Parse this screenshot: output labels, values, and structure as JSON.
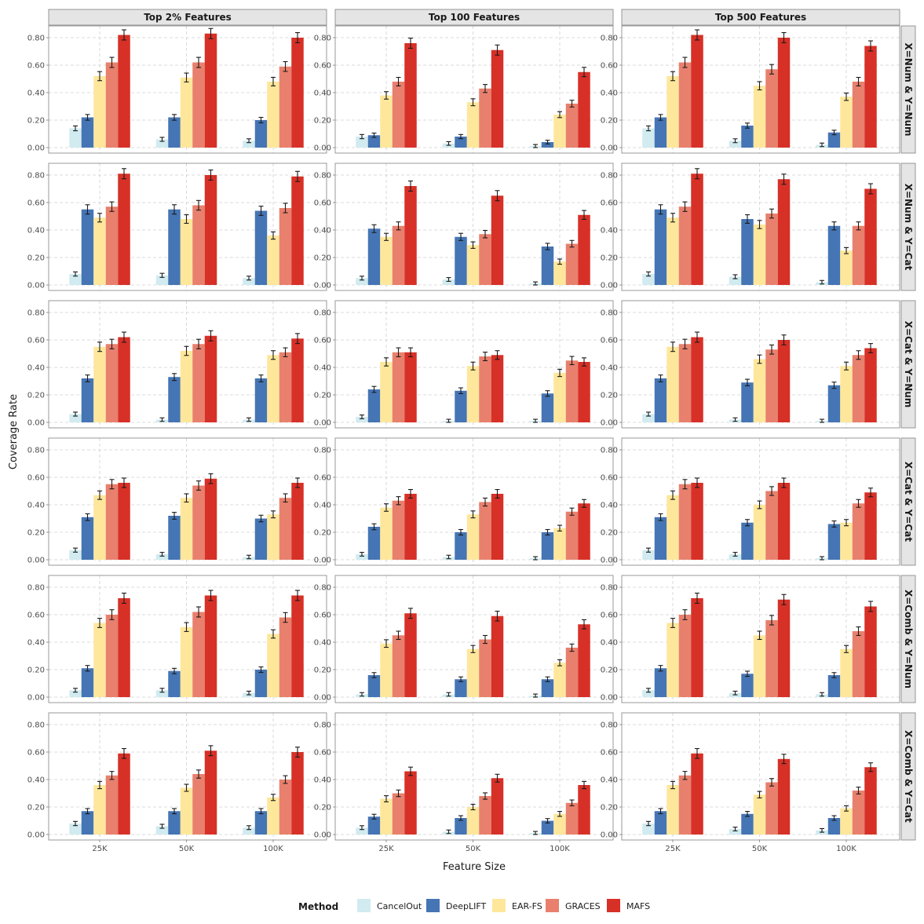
{
  "chart_data": {
    "type": "bar",
    "ylabel": "Coverage Rate",
    "xlabel": "Feature Size",
    "legend_title": "Method",
    "legend_position": "bottom",
    "grid": true,
    "ylim": [
      0,
      0.8
    ],
    "y_ticks": [
      "0.00",
      "0.20",
      "0.40",
      "0.60",
      "0.80"
    ],
    "categories": [
      "25K",
      "50K",
      "100K"
    ],
    "columns": [
      "Top 2% Features",
      "Top 100 Features",
      "Top 500 Features"
    ],
    "rows": [
      "X=Num & Y=Num",
      "X=Num & Y=Cat",
      "X=Cat & Y=Num",
      "X=Cat & Y=Cat",
      "X=Comb & Y=Num",
      "X=Comb & Y=Cat"
    ],
    "methods": [
      {
        "name": "CancelOut",
        "color": "#d1ebf0"
      },
      {
        "name": "DeepLIFT",
        "color": "#4575b4"
      },
      {
        "name": "EAR-FS",
        "color": "#fee79b"
      },
      {
        "name": "GRACES",
        "color": "#e8806d"
      },
      {
        "name": "MAFS",
        "color": "#d73027"
      }
    ],
    "panels": [
      {
        "row": 0,
        "col": 0,
        "values": [
          [
            0.14,
            0.06,
            0.05
          ],
          [
            0.22,
            0.22,
            0.2
          ],
          [
            0.52,
            0.51,
            0.48
          ],
          [
            0.62,
            0.62,
            0.59
          ],
          [
            0.82,
            0.83,
            0.8
          ]
        ]
      },
      {
        "row": 0,
        "col": 1,
        "values": [
          [
            0.08,
            0.03,
            0.01
          ],
          [
            0.09,
            0.08,
            0.04
          ],
          [
            0.38,
            0.33,
            0.24
          ],
          [
            0.48,
            0.43,
            0.32
          ],
          [
            0.76,
            0.71,
            0.55
          ]
        ]
      },
      {
        "row": 0,
        "col": 2,
        "values": [
          [
            0.14,
            0.05,
            0.02
          ],
          [
            0.22,
            0.16,
            0.11
          ],
          [
            0.52,
            0.45,
            0.37
          ],
          [
            0.62,
            0.57,
            0.48
          ],
          [
            0.82,
            0.8,
            0.74
          ]
        ]
      },
      {
        "row": 1,
        "col": 0,
        "values": [
          [
            0.08,
            0.07,
            0.05
          ],
          [
            0.55,
            0.55,
            0.54
          ],
          [
            0.49,
            0.48,
            0.36
          ],
          [
            0.57,
            0.58,
            0.56
          ],
          [
            0.81,
            0.8,
            0.79
          ]
        ]
      },
      {
        "row": 1,
        "col": 1,
        "values": [
          [
            0.05,
            0.04,
            0.01
          ],
          [
            0.41,
            0.35,
            0.28
          ],
          [
            0.35,
            0.29,
            0.17
          ],
          [
            0.43,
            0.37,
            0.3
          ],
          [
            0.72,
            0.65,
            0.51
          ]
        ]
      },
      {
        "row": 1,
        "col": 2,
        "values": [
          [
            0.08,
            0.06,
            0.02
          ],
          [
            0.55,
            0.48,
            0.43
          ],
          [
            0.49,
            0.44,
            0.25
          ],
          [
            0.57,
            0.52,
            0.43
          ],
          [
            0.81,
            0.77,
            0.7
          ]
        ]
      },
      {
        "row": 2,
        "col": 0,
        "values": [
          [
            0.06,
            0.02,
            0.02
          ],
          [
            0.32,
            0.33,
            0.32
          ],
          [
            0.55,
            0.52,
            0.49
          ],
          [
            0.57,
            0.57,
            0.51
          ],
          [
            0.62,
            0.63,
            0.61
          ]
        ]
      },
      {
        "row": 2,
        "col": 1,
        "values": [
          [
            0.04,
            0.01,
            0.01
          ],
          [
            0.24,
            0.23,
            0.21
          ],
          [
            0.44,
            0.41,
            0.36
          ],
          [
            0.51,
            0.48,
            0.45
          ],
          [
            0.51,
            0.49,
            0.44
          ]
        ]
      },
      {
        "row": 2,
        "col": 2,
        "values": [
          [
            0.06,
            0.02,
            0.01
          ],
          [
            0.32,
            0.29,
            0.27
          ],
          [
            0.55,
            0.46,
            0.41
          ],
          [
            0.57,
            0.53,
            0.49
          ],
          [
            0.62,
            0.6,
            0.54
          ]
        ]
      },
      {
        "row": 3,
        "col": 0,
        "values": [
          [
            0.07,
            0.04,
            0.02
          ],
          [
            0.31,
            0.32,
            0.3
          ],
          [
            0.47,
            0.45,
            0.33
          ],
          [
            0.55,
            0.54,
            0.45
          ],
          [
            0.56,
            0.59,
            0.56
          ]
        ]
      },
      {
        "row": 3,
        "col": 1,
        "values": [
          [
            0.04,
            0.02,
            0.01
          ],
          [
            0.24,
            0.2,
            0.2
          ],
          [
            0.38,
            0.33,
            0.23
          ],
          [
            0.43,
            0.42,
            0.35
          ],
          [
            0.48,
            0.48,
            0.41
          ]
        ]
      },
      {
        "row": 3,
        "col": 2,
        "values": [
          [
            0.07,
            0.04,
            0.01
          ],
          [
            0.31,
            0.27,
            0.26
          ],
          [
            0.47,
            0.4,
            0.27
          ],
          [
            0.55,
            0.5,
            0.41
          ],
          [
            0.56,
            0.56,
            0.49
          ]
        ]
      },
      {
        "row": 4,
        "col": 0,
        "values": [
          [
            0.05,
            0.05,
            0.03
          ],
          [
            0.21,
            0.19,
            0.2
          ],
          [
            0.54,
            0.51,
            0.46
          ],
          [
            0.6,
            0.62,
            0.58
          ],
          [
            0.72,
            0.74,
            0.74
          ]
        ]
      },
      {
        "row": 4,
        "col": 1,
        "values": [
          [
            0.02,
            0.02,
            0.01
          ],
          [
            0.16,
            0.13,
            0.13
          ],
          [
            0.39,
            0.35,
            0.25
          ],
          [
            0.45,
            0.42,
            0.36
          ],
          [
            0.61,
            0.59,
            0.53
          ]
        ]
      },
      {
        "row": 4,
        "col": 2,
        "values": [
          [
            0.05,
            0.03,
            0.02
          ],
          [
            0.21,
            0.17,
            0.16
          ],
          [
            0.54,
            0.45,
            0.35
          ],
          [
            0.6,
            0.56,
            0.48
          ],
          [
            0.72,
            0.71,
            0.66
          ]
        ]
      },
      {
        "row": 5,
        "col": 0,
        "values": [
          [
            0.08,
            0.06,
            0.05
          ],
          [
            0.17,
            0.17,
            0.17
          ],
          [
            0.36,
            0.34,
            0.27
          ],
          [
            0.43,
            0.44,
            0.4
          ],
          [
            0.59,
            0.61,
            0.6
          ]
        ]
      },
      {
        "row": 5,
        "col": 1,
        "values": [
          [
            0.05,
            0.02,
            0.01
          ],
          [
            0.13,
            0.12,
            0.1
          ],
          [
            0.26,
            0.2,
            0.15
          ],
          [
            0.3,
            0.28,
            0.23
          ],
          [
            0.46,
            0.41,
            0.36
          ]
        ]
      },
      {
        "row": 5,
        "col": 2,
        "values": [
          [
            0.08,
            0.04,
            0.03
          ],
          [
            0.17,
            0.15,
            0.12
          ],
          [
            0.36,
            0.29,
            0.19
          ],
          [
            0.43,
            0.38,
            0.32
          ],
          [
            0.59,
            0.55,
            0.49
          ]
        ]
      }
    ]
  }
}
